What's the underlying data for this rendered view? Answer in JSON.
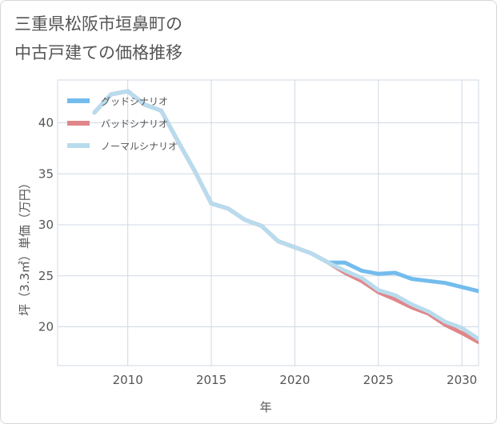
{
  "title_line1": "三重県松阪市垣鼻町の",
  "title_line2": "中古戸建ての価格推移",
  "colors": {
    "good": "#73bced",
    "bad": "#e0868a",
    "normal": "#b8dcee",
    "grid": "#cfd9e4"
  },
  "chart_data": {
    "type": "line",
    "xlabel": "年",
    "ylabel": "坪（3.3㎡）単価（万円）",
    "xlim": [
      2005.8,
      2031
    ],
    "ylim": [
      16.2,
      44.2
    ],
    "xticks": [
      2010,
      2015,
      2020,
      2025,
      2030
    ],
    "yticks": [
      20,
      25,
      30,
      35,
      40
    ],
    "grid": true,
    "legend_position": "top-left",
    "series": [
      {
        "name": "グッドシナリオ",
        "x": [
          2008,
          2009,
          2010,
          2011,
          2012,
          2013,
          2014,
          2015,
          2016,
          2017,
          2018,
          2019,
          2020,
          2021,
          2022,
          2023,
          2024,
          2025,
          2026,
          2027,
          2028,
          2029,
          2030,
          2031
        ],
        "y": [
          41.0,
          42.8,
          43.1,
          41.8,
          41.2,
          38.2,
          35.3,
          32.1,
          31.6,
          30.5,
          29.9,
          28.4,
          27.8,
          27.2,
          26.3,
          26.3,
          25.5,
          25.2,
          25.3,
          24.7,
          24.5,
          24.3,
          23.9,
          23.5
        ]
      },
      {
        "name": "バッドシナリオ",
        "x": [
          2008,
          2009,
          2010,
          2011,
          2012,
          2013,
          2014,
          2015,
          2016,
          2017,
          2018,
          2019,
          2020,
          2021,
          2022,
          2023,
          2024,
          2025,
          2026,
          2027,
          2028,
          2029,
          2030,
          2031
        ],
        "y": [
          41.0,
          42.8,
          43.1,
          41.8,
          41.2,
          38.2,
          35.3,
          32.1,
          31.6,
          30.5,
          29.9,
          28.4,
          27.8,
          27.2,
          26.3,
          25.3,
          24.5,
          23.4,
          22.7,
          21.9,
          21.3,
          20.2,
          19.4,
          18.5
        ]
      },
      {
        "name": "ノーマルシナリオ",
        "x": [
          2008,
          2009,
          2010,
          2011,
          2012,
          2013,
          2014,
          2015,
          2016,
          2017,
          2018,
          2019,
          2020,
          2021,
          2022,
          2023,
          2024,
          2025,
          2026,
          2027,
          2028,
          2029,
          2030,
          2031
        ],
        "y": [
          41.0,
          42.8,
          43.1,
          41.8,
          41.2,
          38.2,
          35.3,
          32.1,
          31.6,
          30.5,
          29.9,
          28.4,
          27.8,
          27.2,
          26.3,
          25.5,
          24.8,
          23.6,
          23.1,
          22.2,
          21.5,
          20.5,
          19.9,
          18.8
        ]
      }
    ]
  }
}
